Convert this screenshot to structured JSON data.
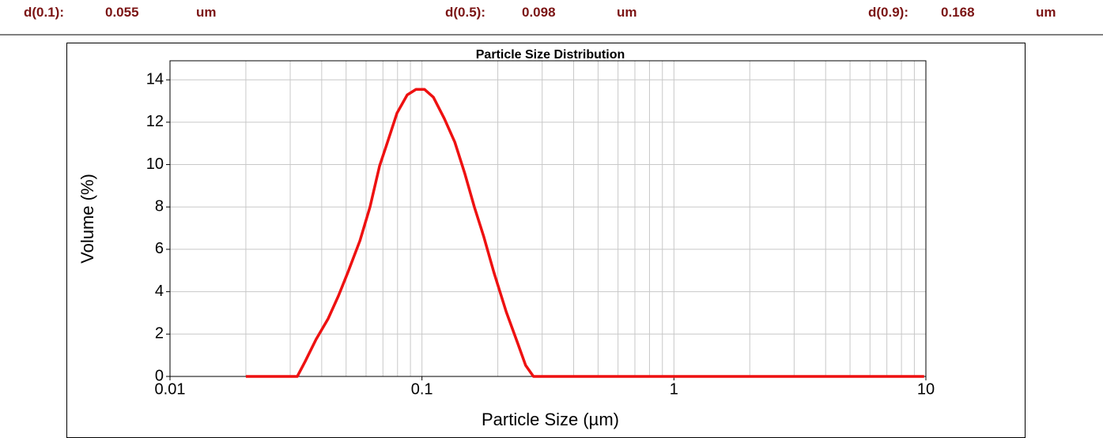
{
  "header": {
    "items": [
      {
        "label": "d(0.1):",
        "value": 0.055,
        "unit": "um"
      },
      {
        "label": "d(0.5):",
        "value": 0.098,
        "unit": "um"
      },
      {
        "label": "d(0.9):",
        "value": 0.168,
        "unit": "um"
      }
    ]
  },
  "chart_data": {
    "type": "line",
    "title": "Particle Size Distribution",
    "x_label": "Particle Size (µm)",
    "y_label": "Volume (%)",
    "x": [
      0.02,
      0.032,
      0.0344,
      0.038,
      0.0424,
      0.0466,
      0.0508,
      0.0567,
      0.0622,
      0.0679,
      0.073,
      0.0796,
      0.0874,
      0.0947,
      0.1023,
      0.111,
      0.1227,
      0.135,
      0.148,
      0.1614,
      0.176,
      0.193,
      0.216,
      0.24,
      0.258,
      0.277,
      9.84
    ],
    "series": [
      {
        "name": "Volume",
        "color": "#ee1111",
        "values": [
          0,
          0,
          0.71,
          1.75,
          2.72,
          3.8,
          4.91,
          6.4,
          8.0,
          9.94,
          11.06,
          12.43,
          13.29,
          13.55,
          13.55,
          13.18,
          12.17,
          11.06,
          9.57,
          8.0,
          6.59,
          4.91,
          3.05,
          1.56,
          0.52,
          0,
          0
        ]
      }
    ],
    "xlim": [
      0.01,
      10
    ],
    "xticks": [
      0.01,
      0.1,
      1,
      10
    ],
    "x_log": true,
    "ylim": [
      0,
      14.9
    ],
    "yticks": [
      0,
      2,
      4,
      6,
      8,
      10,
      12,
      14
    ],
    "grid": true
  }
}
